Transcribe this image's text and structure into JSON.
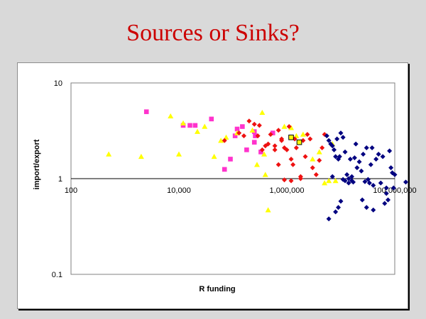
{
  "slide": {
    "title": "Sources or Sinks?"
  },
  "chart_data": {
    "type": "scatter",
    "title": "",
    "xlabel": "R funding",
    "ylabel": "import/export",
    "x_scale": "log",
    "y_scale": "log",
    "xlim": [
      100,
      100000000
    ],
    "ylim": [
      0.1,
      10
    ],
    "x_tick_labels": [
      "100",
      "10,000",
      "1,000,000",
      "100,000,000"
    ],
    "y_tick_labels": [
      "10",
      "1",
      "0.1"
    ],
    "grid": "horizontal line at y=1",
    "colors": {
      "magenta": "#ff33cc",
      "yellow": "#ffff00",
      "red": "#ee1111",
      "navy": "#000080"
    },
    "series": [
      {
        "color": "magenta",
        "marker": "square",
        "points": [
          [
            2500,
            5.0
          ],
          [
            12000,
            3.6
          ],
          [
            16000,
            3.6
          ],
          [
            20000,
            3.6
          ],
          [
            40000,
            4.2
          ],
          [
            70000,
            1.25
          ],
          [
            90000,
            1.6
          ],
          [
            120000,
            3.3
          ],
          [
            110000,
            2.8
          ],
          [
            150000,
            3.5
          ],
          [
            180000,
            2.0
          ],
          [
            250000,
            2.4
          ],
          [
            260000,
            2.8
          ],
          [
            330000,
            1.9
          ],
          [
            550000,
            3.0
          ],
          [
            250000,
            3.1
          ]
        ]
      },
      {
        "color": "yellow",
        "marker": "triangle",
        "points": [
          [
            500,
            1.8
          ],
          [
            2000,
            1.7
          ],
          [
            7000,
            4.5
          ],
          [
            10000,
            1.8
          ],
          [
            12000,
            3.8
          ],
          [
            22000,
            3.1
          ],
          [
            30000,
            3.5
          ],
          [
            45000,
            1.7
          ],
          [
            60000,
            2.5
          ],
          [
            75000,
            2.7
          ],
          [
            120000,
            3.0
          ],
          [
            230000,
            3.2
          ],
          [
            280000,
            1.4
          ],
          [
            350000,
            4.9
          ],
          [
            400000,
            1.1
          ],
          [
            450000,
            0.47
          ],
          [
            380000,
            1.8
          ],
          [
            900000,
            3.5
          ],
          [
            1200000,
            3.4
          ],
          [
            1500000,
            2.8
          ],
          [
            2000000,
            2.9
          ],
          [
            3000000,
            1.6
          ],
          [
            4000000,
            1.9
          ],
          [
            5000000,
            0.9
          ],
          [
            6000000,
            0.95
          ],
          [
            7000000,
            2.3
          ],
          [
            8000000,
            0.95
          ]
        ]
      },
      {
        "color": "red",
        "marker": "diamond",
        "points": [
          [
            70000,
            2.5
          ],
          [
            130000,
            3.0
          ],
          [
            160000,
            2.8
          ],
          [
            200000,
            4.0
          ],
          [
            250000,
            3.7
          ],
          [
            290000,
            2.8
          ],
          [
            310000,
            3.6
          ],
          [
            350000,
            2.0
          ],
          [
            400000,
            2.2
          ],
          [
            450000,
            2.3
          ],
          [
            500000,
            2.9
          ],
          [
            600000,
            2.2
          ],
          [
            700000,
            3.2
          ],
          [
            800000,
            2.5
          ],
          [
            900000,
            2.1
          ],
          [
            1000000,
            2.0
          ],
          [
            1100000,
            3.5
          ],
          [
            1200000,
            1.6
          ],
          [
            1300000,
            1.4
          ],
          [
            1400000,
            2.6
          ],
          [
            1500000,
            2.1
          ],
          [
            1700000,
            2.4
          ],
          [
            1800000,
            1.0
          ],
          [
            2000000,
            2.5
          ],
          [
            2200000,
            1.7
          ],
          [
            2400000,
            2.9
          ],
          [
            2700000,
            2.6
          ],
          [
            3000000,
            1.3
          ],
          [
            3500000,
            1.1
          ],
          [
            4000000,
            1.55
          ],
          [
            4500000,
            2.1
          ],
          [
            5000000,
            2.9
          ],
          [
            1200000,
            0.95
          ],
          [
            1800000,
            1.05
          ],
          [
            800000,
            2.6
          ],
          [
            600000,
            2.0
          ],
          [
            700000,
            1.4
          ],
          [
            900000,
            0.97
          ]
        ]
      },
      {
        "color": "navy",
        "marker": "diamond",
        "points": [
          [
            5500000,
            2.8
          ],
          [
            6000000,
            2.5
          ],
          [
            6500000,
            2.3
          ],
          [
            7000000,
            2.2
          ],
          [
            7500000,
            2.0
          ],
          [
            8000000,
            1.7
          ],
          [
            9000000,
            1.6
          ],
          [
            10000000,
            3.0
          ],
          [
            11000000,
            2.7
          ],
          [
            12000000,
            1.9
          ],
          [
            13000000,
            1.1
          ],
          [
            14000000,
            1.0
          ],
          [
            15000000,
            1.6
          ],
          [
            16000000,
            0.95
          ],
          [
            17000000,
            0.92
          ],
          [
            18000000,
            1.65
          ],
          [
            19000000,
            2.3
          ],
          [
            20000000,
            1.3
          ],
          [
            22000000,
            1.5
          ],
          [
            24000000,
            1.2
          ],
          [
            26000000,
            1.8
          ],
          [
            28000000,
            0.93
          ],
          [
            30000000,
            2.1
          ],
          [
            32000000,
            0.98
          ],
          [
            34000000,
            0.9
          ],
          [
            36000000,
            1.4
          ],
          [
            38000000,
            2.1
          ],
          [
            40000000,
            0.85
          ],
          [
            45000000,
            1.6
          ],
          [
            50000000,
            1.8
          ],
          [
            55000000,
            0.9
          ],
          [
            60000000,
            1.7
          ],
          [
            65000000,
            0.55
          ],
          [
            70000000,
            0.8
          ],
          [
            75000000,
            0.6
          ],
          [
            80000000,
            1.95
          ],
          [
            85000000,
            1.3
          ],
          [
            90000000,
            1.15
          ],
          [
            95000000,
            0.8
          ],
          [
            100000000,
            1.1
          ],
          [
            160000000,
            0.92
          ],
          [
            8000000,
            0.45
          ],
          [
            9000000,
            0.5
          ],
          [
            10000000,
            0.58
          ],
          [
            7000000,
            1.05
          ],
          [
            6000000,
            0.38
          ],
          [
            12000000,
            0.95
          ],
          [
            14000000,
            0.9
          ],
          [
            16000000,
            1.05
          ],
          [
            25000000,
            0.6
          ],
          [
            30000000,
            0.5
          ],
          [
            40000000,
            0.47
          ],
          [
            70000000,
            0.7
          ],
          [
            8500000,
            2.6
          ],
          [
            9500000,
            1.7
          ],
          [
            11000000,
            0.98
          ]
        ]
      },
      {
        "color": "navy",
        "marker": "open-square",
        "points": [
          [
            1200000,
            2.7
          ],
          [
            1700000,
            2.4
          ]
        ]
      }
    ]
  }
}
